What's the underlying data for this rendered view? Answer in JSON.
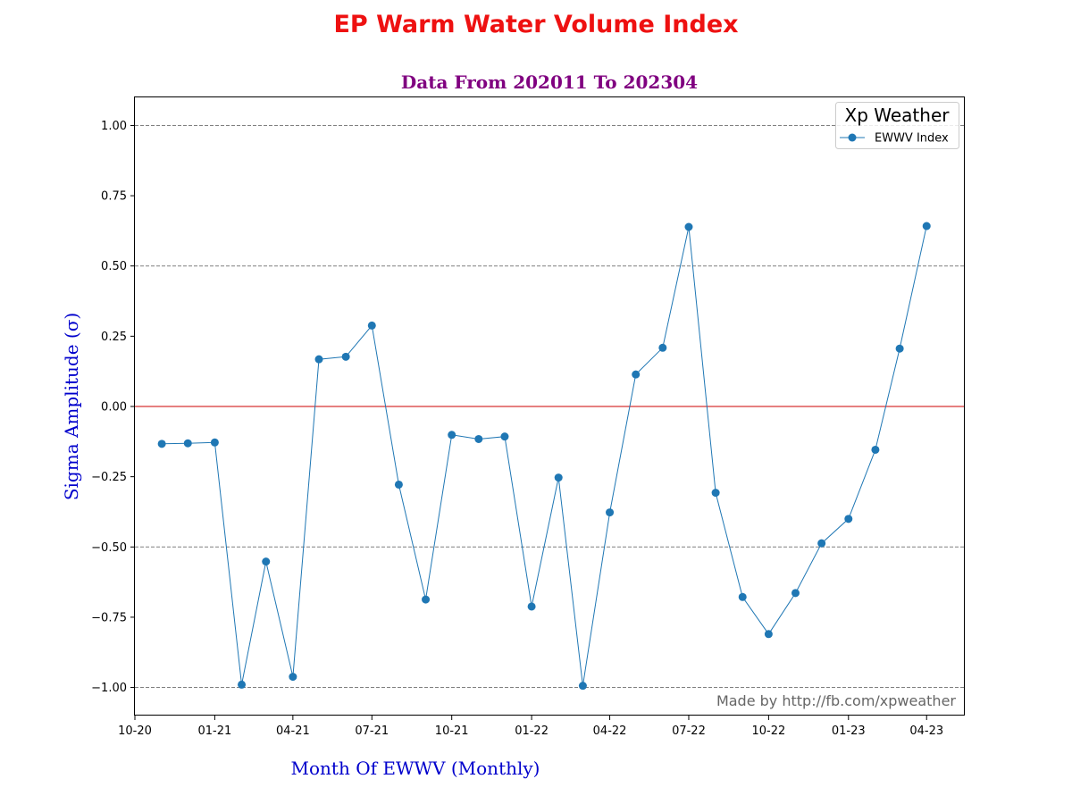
{
  "chart_data": {
    "type": "line",
    "title": "EP Warm Water Volume Index",
    "subtitle": "Data From 202011 To 202304",
    "xlabel": "Month Of EWWV (Monthly)",
    "ylabel": "Sigma Amplitude (σ)",
    "ylim": [
      -1.1,
      1.1
    ],
    "xlim": [
      "2020-10-01",
      "2023-05-15"
    ],
    "x_tick_labels": [
      "10-20",
      "01-21",
      "04-21",
      "07-21",
      "10-21",
      "01-22",
      "04-22",
      "07-22",
      "10-22",
      "01-23",
      "04-23"
    ],
    "x_tick_dates": [
      "2020-10-01",
      "2021-01-01",
      "2021-04-01",
      "2021-07-01",
      "2021-10-01",
      "2022-01-01",
      "2022-04-01",
      "2022-07-01",
      "2022-10-01",
      "2023-01-01",
      "2023-04-01"
    ],
    "y_tick_values": [
      1.0,
      0.75,
      0.5,
      0.25,
      0.0,
      -0.25,
      -0.5,
      -0.75,
      -1.0
    ],
    "y_tick_labels": [
      "1.00",
      "0.75",
      "0.50",
      "0.25",
      "0.00",
      "−0.25",
      "−0.50",
      "−0.75",
      "−1.00"
    ],
    "grid_lines": [
      1.0,
      0.5,
      -0.5,
      -1.0
    ],
    "zero_line": 0.0,
    "legend": {
      "title": "Xp Weather",
      "entries": [
        "EWWV Index"
      ],
      "placement": "top-right"
    },
    "annotation": "Made by http://fb.com/xpweather",
    "series": [
      {
        "name": "EWWV Index",
        "color": "#1f77b4",
        "x": [
          "2020-11-01",
          "2020-12-01",
          "2021-01-01",
          "2021-02-01",
          "2021-03-01",
          "2021-04-01",
          "2021-05-01",
          "2021-06-01",
          "2021-07-01",
          "2021-08-01",
          "2021-09-01",
          "2021-10-01",
          "2021-11-01",
          "2021-12-01",
          "2022-01-01",
          "2022-02-01",
          "2022-03-01",
          "2022-04-01",
          "2022-05-01",
          "2022-06-01",
          "2022-07-01",
          "2022-08-01",
          "2022-09-01",
          "2022-10-01",
          "2022-11-01",
          "2022-12-01",
          "2023-01-01",
          "2023-02-01",
          "2023-03-01",
          "2023-04-01"
        ],
        "values": [
          -0.133,
          -0.131,
          -0.128,
          -0.99,
          -0.552,
          -0.962,
          0.168,
          0.177,
          0.288,
          -0.278,
          -0.687,
          -0.101,
          -0.116,
          -0.107,
          -0.712,
          -0.253,
          -0.994,
          -0.377,
          0.114,
          0.209,
          0.639,
          -0.307,
          -0.678,
          -0.81,
          -0.664,
          -0.487,
          -0.4,
          -0.154,
          0.206,
          0.642
        ]
      }
    ]
  }
}
